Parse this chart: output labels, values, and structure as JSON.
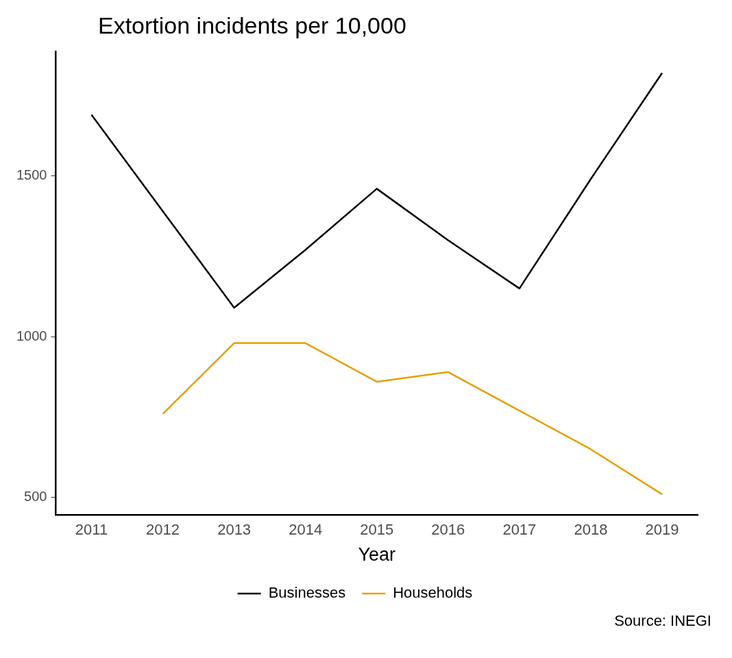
{
  "chart_data": {
    "type": "line",
    "title": "Extortion incidents per 10,000",
    "xlabel": "Year",
    "categories": [
      "2011",
      "2012",
      "2013",
      "2014",
      "2015",
      "2016",
      "2017",
      "2018",
      "2019"
    ],
    "series": [
      {
        "name": "Businesses",
        "color": "#000000",
        "values": [
          1690,
          1390,
          1090,
          1270,
          1460,
          1300,
          1150,
          1490,
          1820
        ]
      },
      {
        "name": "Households",
        "color": "#e69f00",
        "values": [
          null,
          760,
          980,
          980,
          860,
          890,
          770,
          650,
          510
        ]
      }
    ],
    "ylim": [
      446,
      1887
    ],
    "yticks": [
      500,
      1000,
      1500
    ],
    "grid": false,
    "legend": "bottom",
    "marker": "none",
    "line_style": "solid",
    "annotations": [
      "Source: INEGI"
    ]
  }
}
